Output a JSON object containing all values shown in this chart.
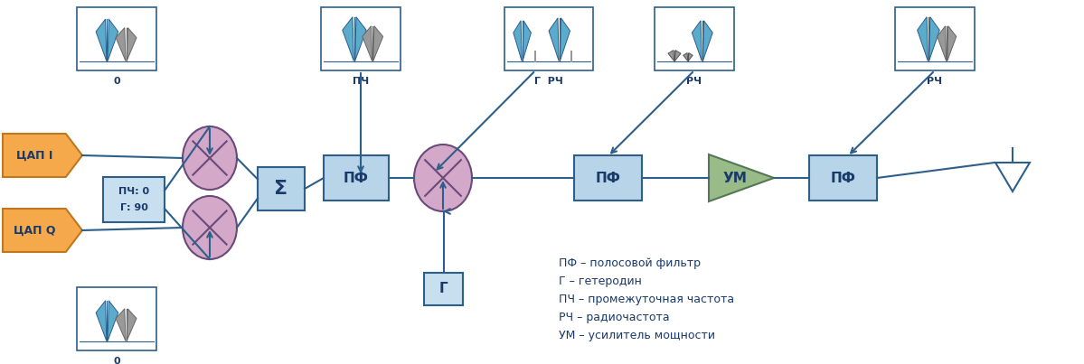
{
  "bg_color": "#ffffff",
  "border_color": "#2d5f8a",
  "box_fill": "#b8d4e8",
  "dap_fill": "#f5a94a",
  "dap_edge": "#c07820",
  "mixer_fill": "#d4a8c8",
  "mixer_edge": "#6a4a7a",
  "amp_fill": "#99bb88",
  "amp_edge": "#557755",
  "phase_fill": "#c8dff0",
  "gen_fill": "#c8dff0",
  "text_color": "#1a3a6a",
  "spec_blue": "#5aabcc",
  "spec_gray": "#999999",
  "legend_lines": [
    "ПФ – полосовой фильтр",
    "Г – гетеродин",
    "ПЧ – промежуточная частота",
    "РЧ – радиочастота",
    "УМ – усилитель мощности"
  ]
}
